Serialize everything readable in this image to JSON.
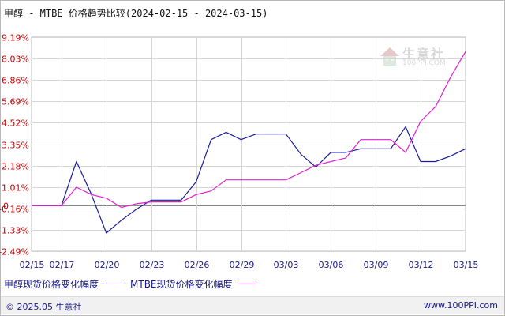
{
  "title": "甲醇 - MTBE 价格趋势比较(2024-02-15 - 2024-03-15)",
  "watermark": {
    "cn": "生意社",
    "url": "100PPI.COM"
  },
  "footer": {
    "left": "© 2025.05 生意社",
    "right": "www.100PPI.com"
  },
  "colors": {
    "series1": "#1c1c9c",
    "series2": "#e020d0",
    "axis_y": "#cc0000",
    "axis_x": "#1a1a8c",
    "grid": "#d6d6d6",
    "zero_line": "#888888"
  },
  "chart_data": {
    "type": "line",
    "title": "甲醇 - MTBE 价格趋势比较(2024-02-15 - 2024-03-15)",
    "y_unit": "%",
    "ylim": [
      -2.49,
      9.19
    ],
    "yticks": [
      9.19,
      8.03,
      6.86,
      5.69,
      4.52,
      3.35,
      2.18,
      1.01,
      -0.16,
      -1.33,
      -2.49
    ],
    "ytick_labels": [
      "9.19%",
      "8.03%",
      "6.86%",
      "5.69%",
      "4.52%",
      "3.35%",
      "2.18%",
      "1.01%",
      "-0.16%",
      "-1.33%",
      "-2.49%"
    ],
    "zero_label": "0",
    "x": [
      "2024-02-15",
      "2024-02-16",
      "2024-02-17",
      "2024-02-18",
      "2024-02-19",
      "2024-02-20",
      "2024-02-21",
      "2024-02-22",
      "2024-02-23",
      "2024-02-24",
      "2024-02-25",
      "2024-02-26",
      "2024-02-27",
      "2024-02-28",
      "2024-02-29",
      "2024-03-01",
      "2024-03-02",
      "2024-03-03",
      "2024-03-04",
      "2024-03-05",
      "2024-03-06",
      "2024-03-07",
      "2024-03-08",
      "2024-03-09",
      "2024-03-10",
      "2024-03-11",
      "2024-03-12",
      "2024-03-13",
      "2024-03-14",
      "2024-03-15"
    ],
    "xticks": [
      "2024-02-15",
      "2024-02-17",
      "2024-02-20",
      "2024-02-23",
      "2024-02-26",
      "2024-02-29",
      "2024-03-03",
      "2024-03-06",
      "2024-03-09",
      "2024-03-12",
      "2024-03-15"
    ],
    "xtick_labels": [
      "02/15",
      "02/17",
      "02/20",
      "02/23",
      "02/26",
      "02/29",
      "03/03",
      "03/06",
      "03/09",
      "03/12",
      "03/15"
    ],
    "series": [
      {
        "name": "甲醇现货价格变化幅度",
        "values": [
          0,
          0,
          0,
          2.4,
          0.6,
          -1.5,
          -0.8,
          -0.2,
          0.3,
          0.3,
          0.3,
          1.3,
          3.6,
          4,
          3.6,
          3.9,
          3.9,
          3.9,
          2.8,
          2.1,
          2.9,
          2.9,
          3.1,
          3.1,
          3.1,
          4.3,
          2.4,
          2.4,
          2.7,
          3.1
        ]
      },
      {
        "name": "MTBE现货价格变化幅度",
        "values": [
          0,
          0,
          0,
          1.0,
          0.6,
          0.4,
          -0.1,
          0.1,
          0.2,
          0.2,
          0.2,
          0.6,
          0.8,
          1.4,
          1.4,
          1.4,
          1.4,
          1.4,
          1.8,
          2.2,
          2.4,
          2.6,
          3.6,
          3.6,
          3.6,
          2.9,
          4.6,
          5.4,
          7.0,
          8.4
        ]
      }
    ],
    "legend": "bottom-left",
    "grid": true
  }
}
